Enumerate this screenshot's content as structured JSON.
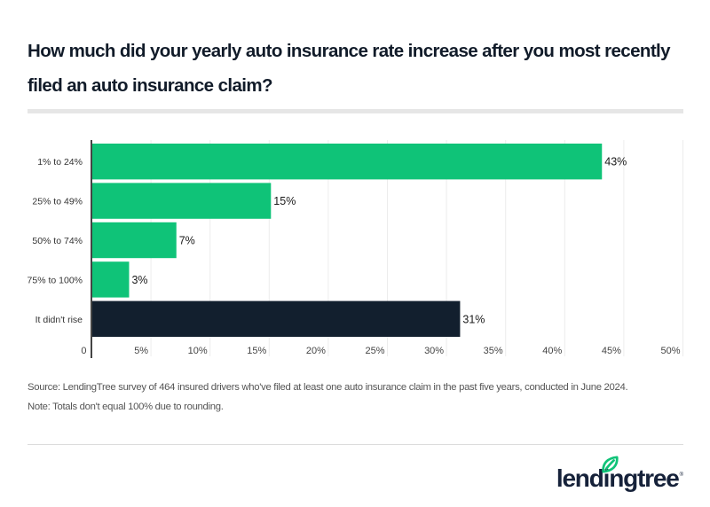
{
  "header": {
    "title": "How much did your yearly auto insurance rate increase after you most recently filed an auto insurance claim?"
  },
  "chart_data": {
    "type": "bar",
    "orientation": "horizontal",
    "title": "How much did your yearly auto insurance rate increase after you most recently filed an auto insurance claim?",
    "xlabel": "",
    "ylabel": "",
    "categories": [
      "1% to 24%",
      "25% to 49%",
      "50% to 74%",
      "75% to 100%",
      "It didn't rise"
    ],
    "values": [
      43,
      15,
      7,
      3,
      31
    ],
    "data_labels": [
      "43%",
      "15%",
      "7%",
      "3%",
      "31%"
    ],
    "bar_colors": [
      "#0fc378",
      "#0fc378",
      "#0fc378",
      "#0fc378",
      "#121f2e"
    ],
    "xlim": [
      0,
      50
    ],
    "x_ticks": [
      0,
      5,
      10,
      15,
      20,
      25,
      30,
      35,
      40,
      45,
      50
    ],
    "x_tick_labels": [
      "0",
      "5%",
      "10%",
      "15%",
      "20%",
      "25%",
      "30%",
      "35%",
      "40%",
      "45%",
      "50%"
    ],
    "grid": true,
    "legend": "none"
  },
  "footer": {
    "source": "Source: LendingTree survey of 464 insured drivers who've filed at least one auto insurance claim in the past five years, conducted in June 2024.",
    "note": "Note: Totals don't equal 100% due to rounding."
  },
  "brand": {
    "logo_text": "lendingtree",
    "registered_mark": "®",
    "leaf_color": "#0fc378",
    "text_color": "#16223a"
  }
}
